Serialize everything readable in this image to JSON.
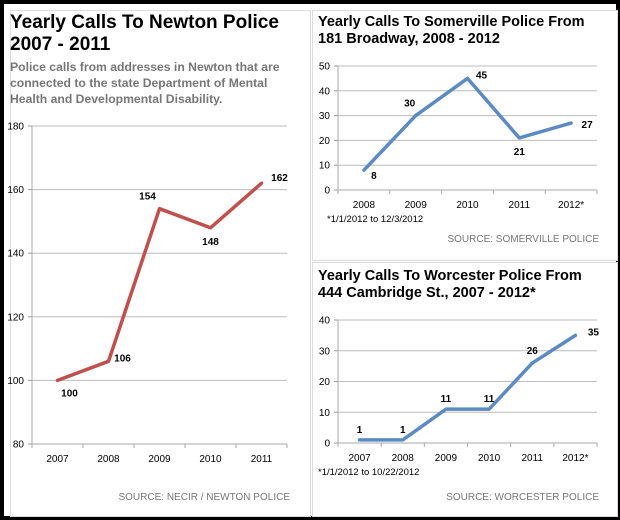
{
  "chart_data": [
    {
      "type": "line",
      "title": "Yearly Calls To Newton Police 2007 - 2011",
      "subtitle": "Police calls from addresses in Newton that are connected to the state Department of Mental Health and Developmental Disability.",
      "categories": [
        "2007",
        "2008",
        "2009",
        "2010",
        "2011"
      ],
      "values": [
        100,
        106,
        154,
        148,
        162
      ],
      "ylim": [
        80,
        180
      ],
      "yticks": [
        "80",
        "100",
        "120",
        "140",
        "160",
        "180"
      ],
      "grid": true,
      "color": "#c0504d",
      "source": "SOURCE: NECIR / NEWTON POLICE"
    },
    {
      "type": "line",
      "title": "Yearly Calls To Somerville Police From 181 Broadway, 2008 - 2012",
      "categories": [
        "2008",
        "2009",
        "2010",
        "2011",
        "2012*"
      ],
      "values": [
        8,
        30,
        45,
        21,
        27
      ],
      "ylim": [
        0,
        50
      ],
      "yticks": [
        "0",
        "10",
        "20",
        "30",
        "40",
        "50"
      ],
      "grid": true,
      "color": "#5b8bc2",
      "note": "*1/1/2012 to 12/3/2012",
      "source": "SOURCE: SOMERVILLE POLICE"
    },
    {
      "type": "line",
      "title": "Yearly Calls To Worcester Police From 444 Cambridge St., 2007 - 2012*",
      "categories": [
        "2007",
        "2008",
        "2009",
        "2010",
        "2011",
        "2012*"
      ],
      "values": [
        1,
        1,
        11,
        11,
        26,
        35
      ],
      "ylim": [
        0,
        40
      ],
      "yticks": [
        "0",
        "10",
        "20",
        "30",
        "40"
      ],
      "grid": true,
      "color": "#5b8bc2",
      "note": "*1/1/2012 to 10/22/2012",
      "source": "SOURCE: WORCESTER POLICE"
    }
  ]
}
